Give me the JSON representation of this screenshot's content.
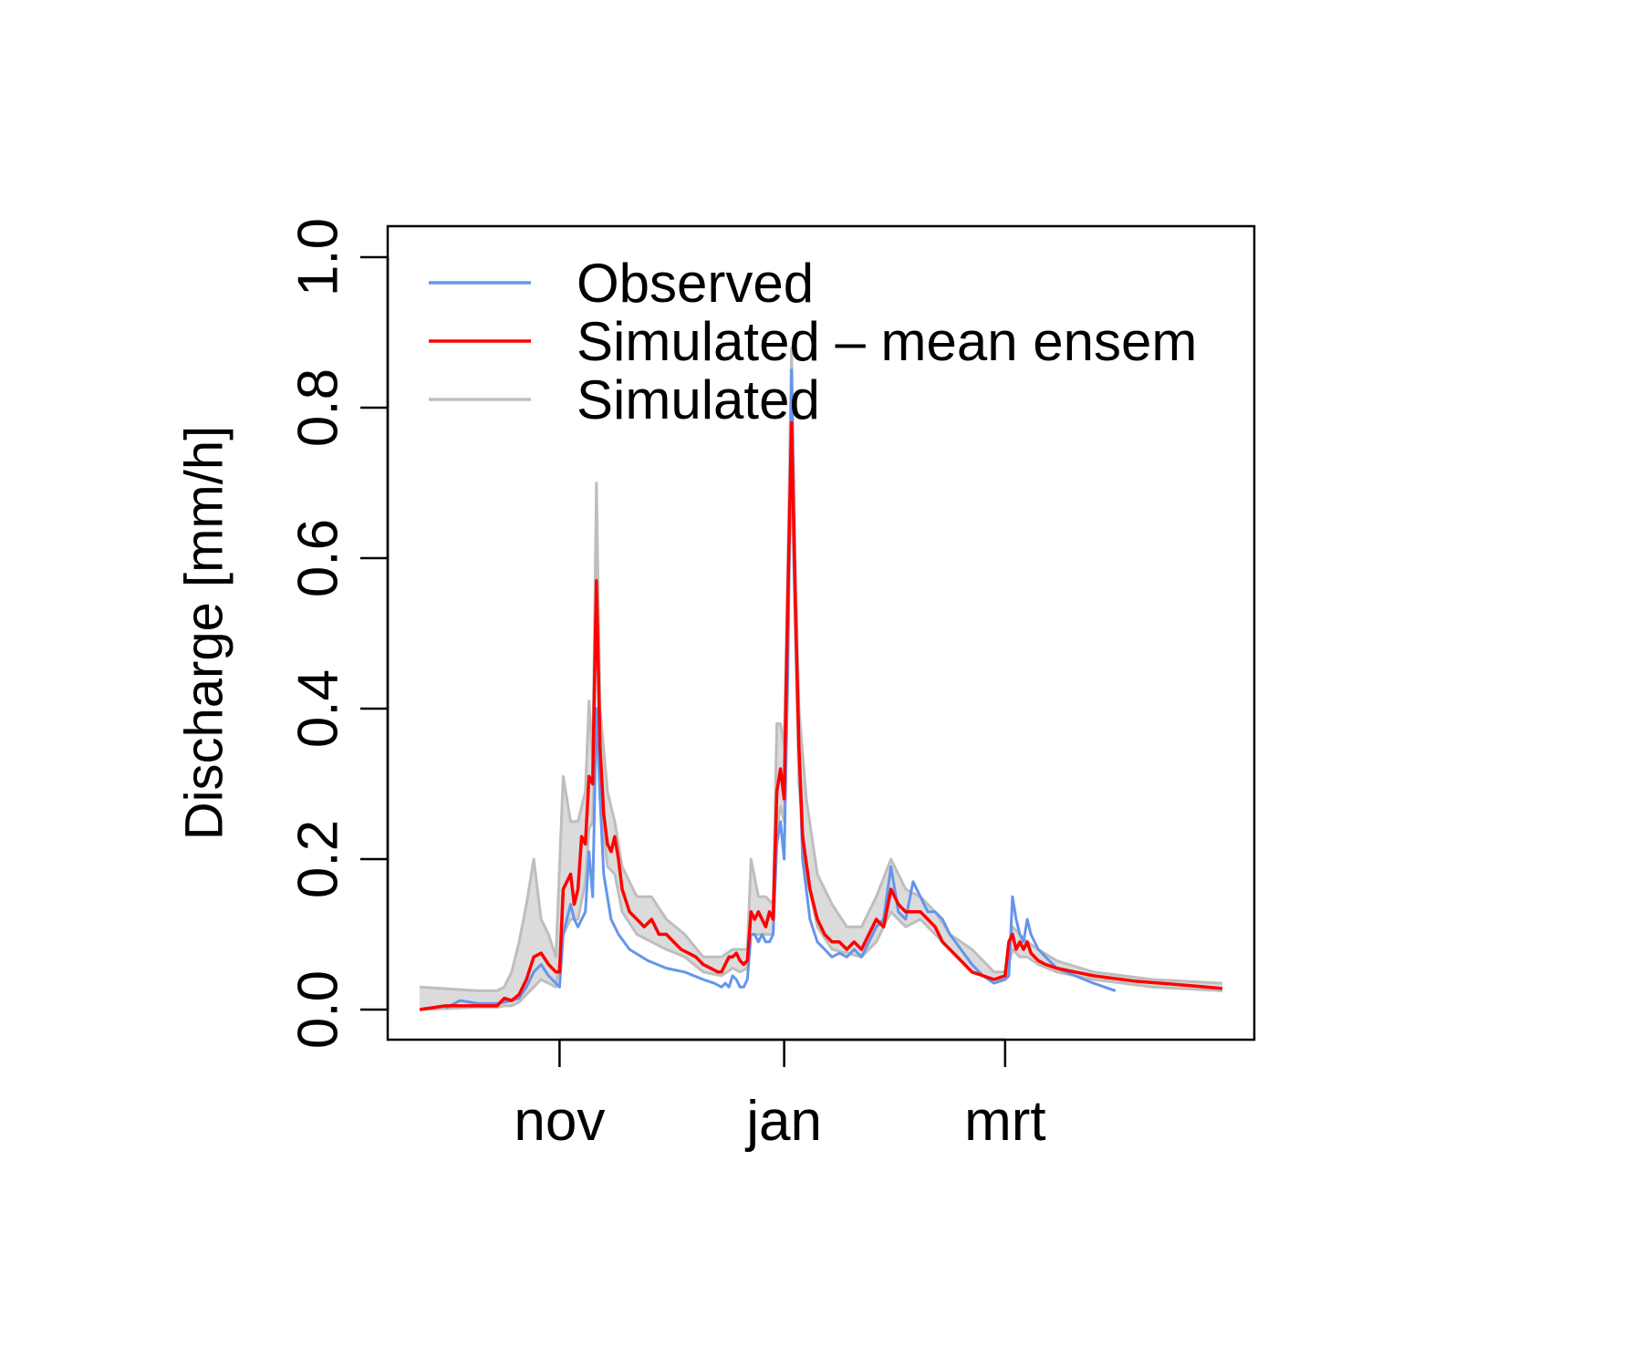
{
  "chart_data": {
    "type": "line",
    "title": "",
    "xlabel": "",
    "ylabel": "Discharge [mm/h]",
    "ylim": [
      0,
      1.0
    ],
    "yticks": [
      0.0,
      0.2,
      0.4,
      0.6,
      0.8,
      1.0
    ],
    "ytick_labels": [
      "0.0",
      "0.2",
      "0.4",
      "0.6",
      "0.8",
      "1.0"
    ],
    "xlim": [
      "2015-09-24",
      "2016-04-29"
    ],
    "xticks": [
      "2015-11-01",
      "2016-01-01",
      "2016-03-01"
    ],
    "xtick_labels": [
      "nov",
      "jan",
      "mrt"
    ],
    "grid": false,
    "legend_position": "top-left",
    "legend": [
      {
        "label": "Observed",
        "color": "#6495ED"
      },
      {
        "label": "Simulated – mean ensem",
        "color": "#FF0000"
      },
      {
        "label": "Simulated",
        "color": "#BEBEBE"
      }
    ],
    "colors": {
      "observed": "#6495ED",
      "mean_ensemble": "#FF0000",
      "ensemble": "#BEBEBE"
    },
    "series": {
      "observed": {
        "x": [
          "2015-10-01",
          "2015-10-05",
          "2015-10-10",
          "2015-10-15",
          "2015-10-17",
          "2015-10-19",
          "2015-10-21",
          "2015-10-23",
          "2015-10-25",
          "2015-10-27",
          "2015-10-29",
          "2015-10-31",
          "2015-11-01",
          "2015-11-02",
          "2015-11-04",
          "2015-11-05",
          "2015-11-06",
          "2015-11-07",
          "2015-11-08",
          "2015-11-09",
          "2015-11-10",
          "2015-11-11",
          "2015-11-12",
          "2015-11-13",
          "2015-11-15",
          "2015-11-17",
          "2015-11-20",
          "2015-11-25",
          "2015-11-30",
          "2015-12-05",
          "2015-12-10",
          "2015-12-13",
          "2015-12-15",
          "2015-12-16",
          "2015-12-17",
          "2015-12-18",
          "2015-12-19",
          "2015-12-20",
          "2015-12-21",
          "2015-12-22",
          "2015-12-23",
          "2015-12-24",
          "2015-12-25",
          "2015-12-26",
          "2015-12-27",
          "2015-12-28",
          "2015-12-29",
          "2015-12-30",
          "2015-12-31",
          "2016-01-01",
          "2016-01-02",
          "2016-01-03",
          "2016-01-04",
          "2016-01-05",
          "2016-01-06",
          "2016-01-08",
          "2016-01-10",
          "2016-01-12",
          "2016-01-14",
          "2016-01-16",
          "2016-01-18",
          "2016-01-20",
          "2016-01-22",
          "2016-01-24",
          "2016-01-26",
          "2016-01-28",
          "2016-01-30",
          "2016-02-01",
          "2016-02-03",
          "2016-02-05",
          "2016-02-07",
          "2016-02-09",
          "2016-02-11",
          "2016-02-13",
          "2016-02-15",
          "2016-02-18",
          "2016-02-21",
          "2016-02-24",
          "2016-02-27",
          "2016-03-01",
          "2016-03-02",
          "2016-03-03",
          "2016-03-04",
          "2016-03-05",
          "2016-03-06",
          "2016-03-07",
          "2016-03-08",
          "2016-03-10",
          "2016-03-12",
          "2016-03-15",
          "2016-03-20",
          "2016-03-25",
          "2016-03-31"
        ],
        "y": [
          0.002,
          0.012,
          0.008,
          0.008,
          0.01,
          0.012,
          0.015,
          0.03,
          0.05,
          0.06,
          0.045,
          0.035,
          0.03,
          0.1,
          0.14,
          0.12,
          0.11,
          0.12,
          0.13,
          0.21,
          0.15,
          0.4,
          0.28,
          0.18,
          0.12,
          0.1,
          0.08,
          0.065,
          0.055,
          0.05,
          0.04,
          0.035,
          0.03,
          0.035,
          0.03,
          0.045,
          0.04,
          0.03,
          0.03,
          0.04,
          0.1,
          0.1,
          0.09,
          0.1,
          0.09,
          0.09,
          0.1,
          0.22,
          0.25,
          0.2,
          0.45,
          0.85,
          0.55,
          0.35,
          0.2,
          0.12,
          0.09,
          0.08,
          0.07,
          0.075,
          0.07,
          0.08,
          0.07,
          0.09,
          0.11,
          0.12,
          0.19,
          0.13,
          0.12,
          0.17,
          0.15,
          0.13,
          0.13,
          0.12,
          0.1,
          0.08,
          0.06,
          0.045,
          0.035,
          0.04,
          0.045,
          0.15,
          0.12,
          0.1,
          0.09,
          0.12,
          0.1,
          0.08,
          0.07,
          0.055,
          0.045,
          0.035,
          0.025
        ]
      },
      "mean_ensemble": {
        "x": [
          "2015-09-24",
          "2015-10-01",
          "2015-10-10",
          "2015-10-15",
          "2015-10-17",
          "2015-10-19",
          "2015-10-21",
          "2015-10-23",
          "2015-10-25",
          "2015-10-27",
          "2015-10-29",
          "2015-10-31",
          "2015-11-01",
          "2015-11-02",
          "2015-11-04",
          "2015-11-05",
          "2015-11-06",
          "2015-11-07",
          "2015-11-08",
          "2015-11-09",
          "2015-11-10",
          "2015-11-11",
          "2015-11-12",
          "2015-11-13",
          "2015-11-14",
          "2015-11-15",
          "2015-11-16",
          "2015-11-17",
          "2015-11-18",
          "2015-11-20",
          "2015-11-22",
          "2015-11-24",
          "2015-11-26",
          "2015-11-28",
          "2015-11-30",
          "2015-12-02",
          "2015-12-04",
          "2015-12-06",
          "2015-12-08",
          "2015-12-10",
          "2015-12-12",
          "2015-12-14",
          "2015-12-15",
          "2015-12-16",
          "2015-12-17",
          "2015-12-18",
          "2015-12-19",
          "2015-12-20",
          "2015-12-21",
          "2015-12-22",
          "2015-12-23",
          "2015-12-24",
          "2015-12-25",
          "2015-12-26",
          "2015-12-27",
          "2015-12-28",
          "2015-12-29",
          "2015-12-30",
          "2015-12-31",
          "2016-01-01",
          "2016-01-02",
          "2016-01-03",
          "2016-01-04",
          "2016-01-05",
          "2016-01-06",
          "2016-01-08",
          "2016-01-10",
          "2016-01-12",
          "2016-01-14",
          "2016-01-16",
          "2016-01-18",
          "2016-01-20",
          "2016-01-22",
          "2016-01-24",
          "2016-01-26",
          "2016-01-28",
          "2016-01-30",
          "2016-02-01",
          "2016-02-03",
          "2016-02-05",
          "2016-02-07",
          "2016-02-09",
          "2016-02-11",
          "2016-02-13",
          "2016-02-15",
          "2016-02-18",
          "2016-02-21",
          "2016-02-24",
          "2016-02-27",
          "2016-03-01",
          "2016-03-02",
          "2016-03-03",
          "2016-03-04",
          "2016-03-05",
          "2016-03-06",
          "2016-03-07",
          "2016-03-08",
          "2016-03-10",
          "2016-03-12",
          "2016-03-15",
          "2016-03-20",
          "2016-03-25",
          "2016-04-05",
          "2016-04-20",
          "2016-04-29"
        ],
        "y": [
          0.0,
          0.005,
          0.005,
          0.005,
          0.015,
          0.012,
          0.02,
          0.04,
          0.07,
          0.075,
          0.06,
          0.05,
          0.05,
          0.16,
          0.18,
          0.14,
          0.16,
          0.23,
          0.22,
          0.31,
          0.3,
          0.57,
          0.35,
          0.26,
          0.22,
          0.21,
          0.23,
          0.2,
          0.16,
          0.13,
          0.12,
          0.11,
          0.12,
          0.1,
          0.1,
          0.09,
          0.08,
          0.075,
          0.07,
          0.06,
          0.055,
          0.05,
          0.05,
          0.06,
          0.07,
          0.07,
          0.075,
          0.065,
          0.06,
          0.065,
          0.13,
          0.12,
          0.13,
          0.12,
          0.11,
          0.13,
          0.12,
          0.29,
          0.32,
          0.28,
          0.55,
          0.78,
          0.55,
          0.35,
          0.23,
          0.16,
          0.12,
          0.1,
          0.09,
          0.09,
          0.08,
          0.09,
          0.08,
          0.1,
          0.12,
          0.11,
          0.16,
          0.14,
          0.13,
          0.13,
          0.13,
          0.12,
          0.11,
          0.09,
          0.08,
          0.065,
          0.05,
          0.045,
          0.04,
          0.045,
          0.09,
          0.1,
          0.08,
          0.09,
          0.08,
          0.09,
          0.075,
          0.065,
          0.06,
          0.055,
          0.05,
          0.045,
          0.038,
          0.032,
          0.028
        ]
      },
      "ensemble_envelope": {
        "x": [
          "2015-09-24",
          "2015-10-10",
          "2015-10-15",
          "2015-10-17",
          "2015-10-19",
          "2015-10-21",
          "2015-10-23",
          "2015-10-25",
          "2015-10-27",
          "2015-10-29",
          "2015-10-31",
          "2015-11-02",
          "2015-11-04",
          "2015-11-06",
          "2015-11-08",
          "2015-11-09",
          "2015-11-10",
          "2015-11-11",
          "2015-11-12",
          "2015-11-14",
          "2015-11-16",
          "2015-11-18",
          "2015-11-22",
          "2015-11-26",
          "2015-11-30",
          "2015-12-05",
          "2015-12-10",
          "2015-12-15",
          "2015-12-18",
          "2015-12-20",
          "2015-12-22",
          "2015-12-23",
          "2015-12-25",
          "2015-12-27",
          "2015-12-29",
          "2015-12-30",
          "2015-12-31",
          "2016-01-01",
          "2016-01-02",
          "2016-01-03",
          "2016-01-04",
          "2016-01-05",
          "2016-01-07",
          "2016-01-10",
          "2016-01-14",
          "2016-01-18",
          "2016-01-22",
          "2016-01-26",
          "2016-01-30",
          "2016-02-03",
          "2016-02-07",
          "2016-02-11",
          "2016-02-15",
          "2016-02-21",
          "2016-02-27",
          "2016-03-01",
          "2016-03-03",
          "2016-03-05",
          "2016-03-07",
          "2016-03-10",
          "2016-03-15",
          "2016-03-25",
          "2016-04-10",
          "2016-04-29"
        ],
        "y_min": [
          0.0,
          0.003,
          0.003,
          0.005,
          0.005,
          0.01,
          0.02,
          0.03,
          0.04,
          0.035,
          0.03,
          0.1,
          0.12,
          0.12,
          0.17,
          0.24,
          0.25,
          0.4,
          0.28,
          0.19,
          0.18,
          0.13,
          0.1,
          0.09,
          0.08,
          0.07,
          0.05,
          0.045,
          0.055,
          0.05,
          0.055,
          0.1,
          0.1,
          0.1,
          0.1,
          0.24,
          0.27,
          0.25,
          0.5,
          0.72,
          0.5,
          0.3,
          0.18,
          0.11,
          0.08,
          0.075,
          0.07,
          0.09,
          0.13,
          0.11,
          0.12,
          0.1,
          0.08,
          0.05,
          0.04,
          0.04,
          0.08,
          0.07,
          0.07,
          0.06,
          0.05,
          0.04,
          0.03,
          0.025
        ],
        "y_max": [
          0.03,
          0.025,
          0.025,
          0.03,
          0.05,
          0.09,
          0.14,
          0.2,
          0.12,
          0.1,
          0.07,
          0.31,
          0.25,
          0.25,
          0.29,
          0.41,
          0.33,
          0.7,
          0.4,
          0.29,
          0.25,
          0.19,
          0.15,
          0.15,
          0.12,
          0.1,
          0.07,
          0.07,
          0.08,
          0.08,
          0.08,
          0.2,
          0.15,
          0.15,
          0.14,
          0.38,
          0.38,
          0.35,
          0.6,
          0.88,
          0.6,
          0.4,
          0.28,
          0.18,
          0.14,
          0.11,
          0.11,
          0.15,
          0.2,
          0.16,
          0.15,
          0.13,
          0.1,
          0.08,
          0.05,
          0.05,
          0.11,
          0.1,
          0.09,
          0.08,
          0.065,
          0.05,
          0.04,
          0.035
        ]
      }
    }
  }
}
